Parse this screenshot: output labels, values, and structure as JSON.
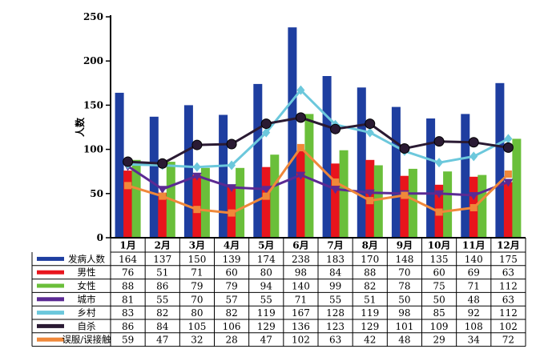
{
  "chart_data": {
    "type": "bar",
    "title": "",
    "ylabel": "人数",
    "xlabel": "",
    "ylim": [
      0,
      250
    ],
    "yticks": [
      0,
      50,
      100,
      150,
      200,
      250
    ],
    "categories": [
      "1月",
      "2月",
      "3月",
      "4月",
      "5月",
      "6月",
      "7月",
      "8月",
      "9月",
      "10月",
      "11月",
      "12月"
    ],
    "series": [
      {
        "name": "发病人数",
        "kind": "bar",
        "color": "#1e3ea0",
        "values": [
          164,
          137,
          150,
          139,
          174,
          238,
          183,
          170,
          148,
          135,
          140,
          175
        ]
      },
      {
        "name": "男性",
        "kind": "bar",
        "color": "#e8141c",
        "values": [
          76,
          51,
          71,
          60,
          80,
          98,
          84,
          88,
          70,
          60,
          69,
          63
        ]
      },
      {
        "name": "女性",
        "kind": "bar",
        "color": "#6abf3a",
        "values": [
          88,
          86,
          79,
          79,
          94,
          140,
          99,
          82,
          78,
          75,
          71,
          112
        ]
      },
      {
        "name": "城市",
        "kind": "line",
        "marker": "triangle-down",
        "color": "#5b2a93",
        "values": [
          81,
          55,
          70,
          57,
          55,
          71,
          55,
          51,
          50,
          50,
          48,
          63
        ]
      },
      {
        "name": "乡村",
        "kind": "line",
        "marker": "diamond",
        "color": "#6cc8dc",
        "values": [
          83,
          82,
          80,
          82,
          119,
          167,
          128,
          119,
          98,
          85,
          92,
          112
        ]
      },
      {
        "name": "自杀",
        "kind": "line",
        "marker": "circle",
        "color": "#2a1a33",
        "values": [
          86,
          84,
          105,
          106,
          129,
          136,
          123,
          129,
          101,
          109,
          108,
          102
        ]
      },
      {
        "name": "误服/误接触",
        "kind": "line",
        "marker": "square",
        "color": "#f0883a",
        "values": [
          59,
          47,
          32,
          28,
          47,
          102,
          63,
          42,
          48,
          29,
          34,
          72
        ]
      }
    ]
  }
}
